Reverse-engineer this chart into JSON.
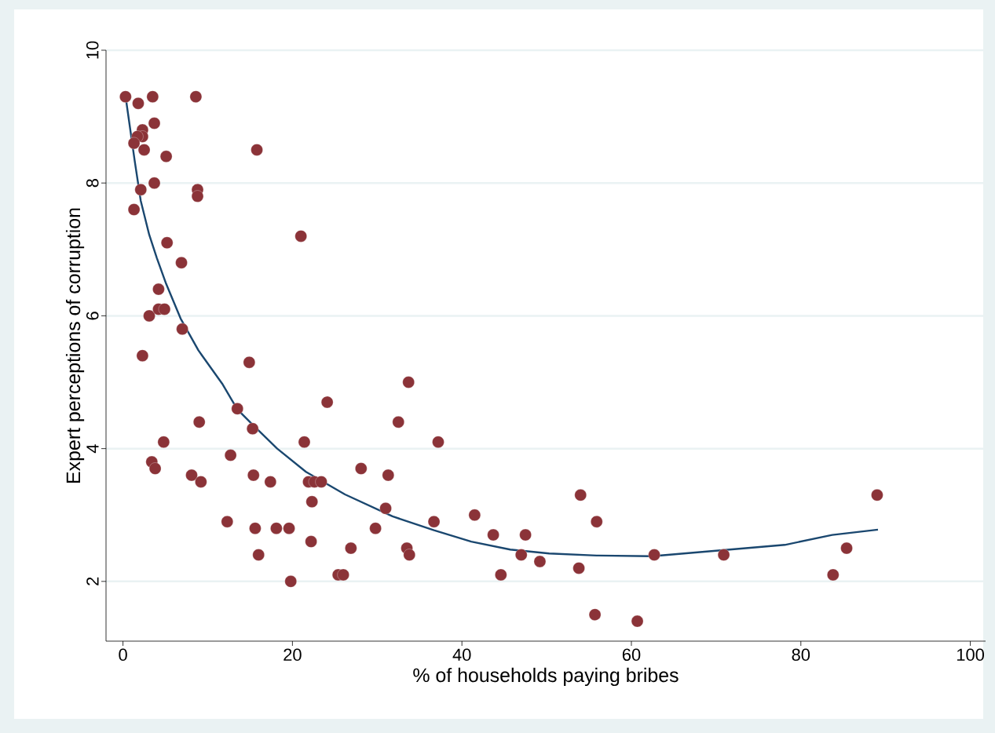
{
  "chart_data": {
    "type": "scatter",
    "xlabel": "% of households paying bribes",
    "ylabel": "Expert perceptions of corruption",
    "xlim": [
      -2,
      101.8
    ],
    "ylim": [
      1.1,
      10
    ],
    "xticks": [
      0,
      20,
      40,
      60,
      80,
      100
    ],
    "yticks": [
      2,
      4,
      6,
      8,
      10
    ],
    "grid": "y",
    "series": [
      {
        "color": "#8b3338",
        "marker": "circle",
        "x": [
          0.3,
          1.8,
          3.5,
          8.6,
          3.7,
          2.3,
          2.3,
          1.7,
          1.3,
          2.5,
          15.8,
          5.1,
          2.1,
          3.7,
          8.8,
          8.8,
          1.3,
          21.0,
          5.2,
          6.9,
          4.2,
          3.1,
          4.2,
          4.9,
          7.0,
          2.3,
          14.9,
          33.7,
          24.1,
          13.5,
          32.5,
          9.0,
          15.3,
          4.8,
          21.4,
          37.2,
          12.7,
          3.4,
          3.8,
          28.1,
          8.1,
          15.4,
          31.3,
          9.2,
          17.4,
          21.9,
          22.6,
          23.4,
          22.3,
          31.0,
          12.3,
          36.7,
          55.9,
          54.0,
          89.0,
          41.5,
          15.6,
          18.1,
          19.6,
          29.8,
          43.7,
          47.5,
          22.2,
          26.9,
          33.5,
          85.4,
          33.8,
          16.0,
          47.0,
          62.7,
          70.9,
          49.2,
          53.8,
          25.4,
          26.0,
          44.6,
          83.8,
          19.8,
          55.7,
          60.7
        ],
        "values": [
          9.3,
          9.2,
          9.3,
          9.3,
          8.9,
          8.8,
          8.7,
          8.7,
          8.6,
          8.5,
          8.5,
          8.4,
          7.9,
          8.0,
          7.9,
          7.8,
          7.6,
          7.2,
          7.1,
          6.8,
          6.4,
          6.0,
          6.1,
          6.1,
          5.8,
          5.4,
          5.3,
          5.0,
          4.7,
          4.6,
          4.4,
          4.4,
          4.3,
          4.1,
          4.1,
          4.1,
          3.9,
          3.8,
          3.7,
          3.7,
          3.6,
          3.6,
          3.6,
          3.5,
          3.5,
          3.5,
          3.5,
          3.5,
          3.2,
          3.1,
          2.9,
          2.9,
          2.9,
          3.3,
          3.3,
          3.0,
          2.8,
          2.8,
          2.8,
          2.8,
          2.7,
          2.7,
          2.6,
          2.5,
          2.5,
          2.5,
          2.4,
          2.4,
          2.4,
          2.4,
          2.4,
          2.3,
          2.2,
          2.1,
          2.1,
          2.1,
          2.1,
          2.0,
          1.5,
          1.4
        ]
      },
      {
        "type": "line",
        "color": "#1a476f",
        "line_style": "solid",
        "marker": "none",
        "x": [
          0.4,
          1.4,
          2.1,
          3.1,
          4.0,
          5.1,
          6.8,
          8.9,
          11.7,
          13.5,
          15.3,
          18.2,
          21.6,
          26.2,
          31.8,
          36.7,
          41.1,
          45.7,
          50.3,
          55.9,
          62.4,
          68.9,
          73.5,
          78.1,
          83.7,
          89.1
        ],
        "values": [
          9.22,
          8.32,
          7.73,
          7.22,
          6.87,
          6.48,
          5.96,
          5.48,
          4.98,
          4.59,
          4.36,
          4.0,
          3.65,
          3.31,
          2.98,
          2.77,
          2.6,
          2.48,
          2.42,
          2.39,
          2.38,
          2.45,
          2.5,
          2.55,
          2.7,
          2.78
        ]
      }
    ]
  }
}
